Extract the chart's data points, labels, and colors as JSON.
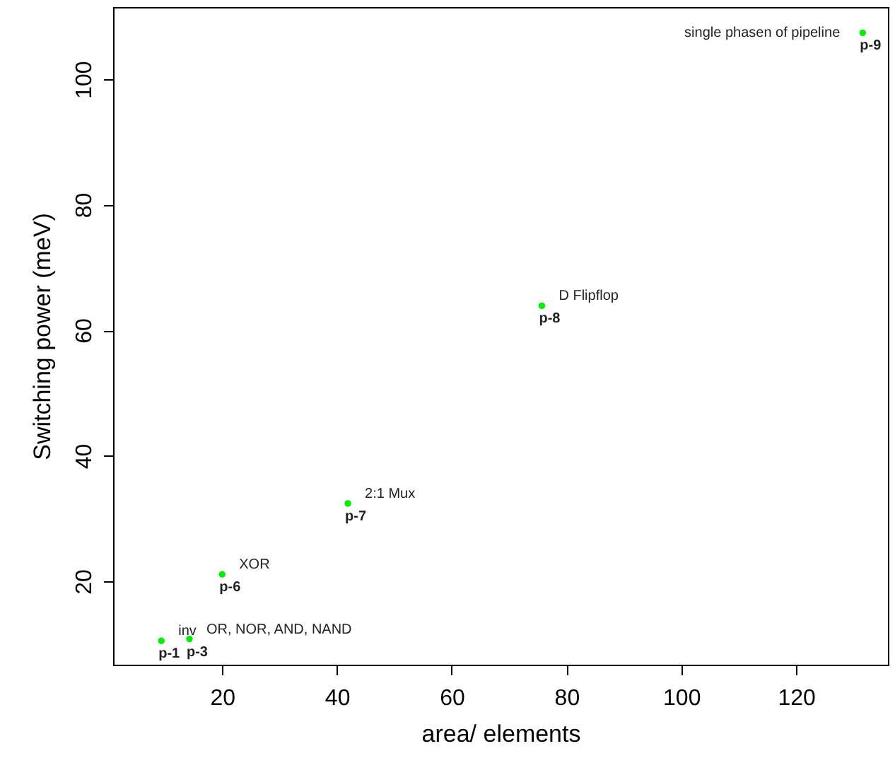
{
  "chart_data": {
    "type": "scatter",
    "xlabel": "area/ elements",
    "ylabel": "Switching power (meV)",
    "x": [
      9.4,
      14.3,
      20.0,
      41.9,
      75.7,
      131.6
    ],
    "series": [
      {
        "color": "#00ee00",
        "values": [
          10.5,
          10.8,
          21.1,
          32.4,
          63.9,
          107.4
        ]
      }
    ],
    "marker": "circle",
    "grid": false,
    "xlim": [
      1.0,
      136.0
    ],
    "ylim": [
      6.7,
      111.5
    ],
    "xticks": [
      20,
      40,
      60,
      80,
      100,
      120
    ],
    "yticks": [
      20,
      40,
      60,
      80,
      100
    ],
    "annotations": [
      {
        "text": "p-1",
        "x": 9.4,
        "y": 10.5
      },
      {
        "text": "inv",
        "x": 9.4,
        "y": 10.5
      },
      {
        "text": "p-3",
        "x": 14.3,
        "y": 10.8
      },
      {
        "text": "OR, NOR, AND, NAND",
        "x": 14.3,
        "y": 10.8
      },
      {
        "text": "p-6",
        "x": 20.0,
        "y": 21.1
      },
      {
        "text": "XOR",
        "x": 20.0,
        "y": 21.1
      },
      {
        "text": "p-7",
        "x": 41.9,
        "y": 32.4
      },
      {
        "text": "2:1 Mux",
        "x": 41.9,
        "y": 32.4
      },
      {
        "text": "p-8",
        "x": 75.7,
        "y": 63.9
      },
      {
        "text": "D Flipflop",
        "x": 75.7,
        "y": 63.9
      },
      {
        "text": "p-9",
        "x": 131.6,
        "y": 107.4
      },
      {
        "text": "single phasen of pipeline",
        "x": 131.6,
        "y": 107.4
      }
    ]
  }
}
